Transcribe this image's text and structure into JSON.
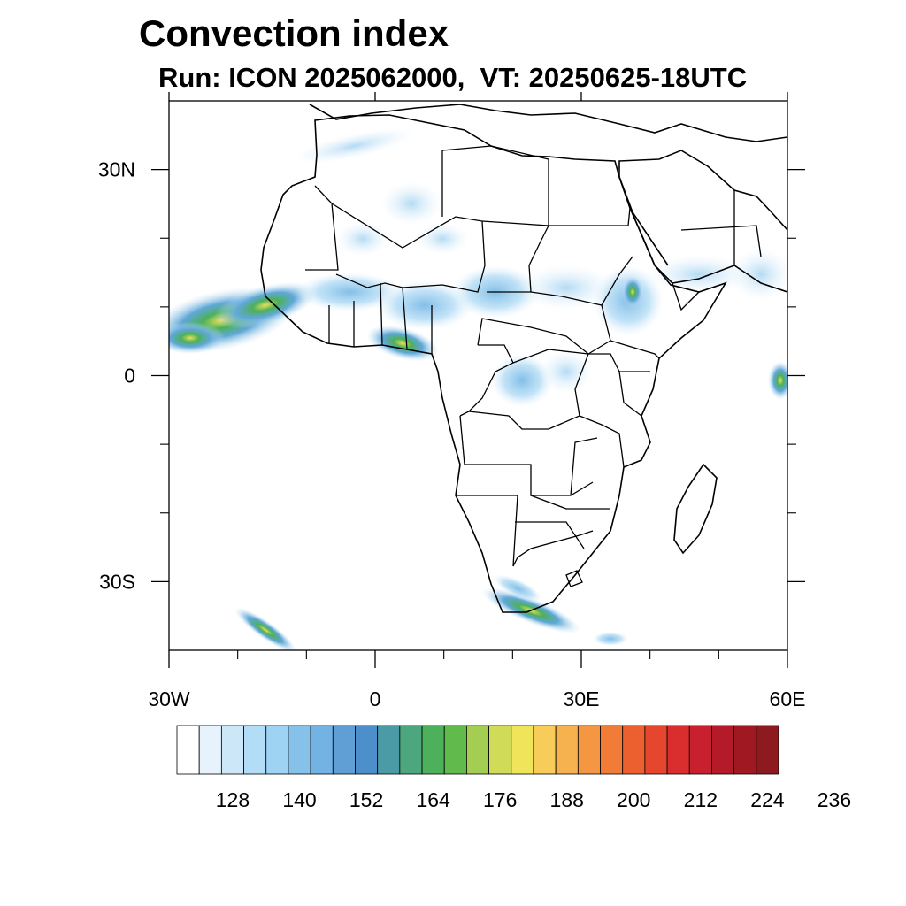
{
  "title": "Convection index",
  "subtitle": "Run: ICON 2025062000,  VT: 20250625-18UTC",
  "map": {
    "region": "Africa",
    "lon_range": [
      -30,
      60
    ],
    "lat_range": [
      -40,
      40
    ],
    "lon_ticks": [
      {
        "lon": -30,
        "label": "30W"
      },
      {
        "lon": 0,
        "label": "0"
      },
      {
        "lon": 30,
        "label": "30E"
      },
      {
        "lon": 60,
        "label": "60E"
      }
    ],
    "lat_ticks": [
      {
        "lat": 30,
        "label": "30N"
      },
      {
        "lat": 0,
        "label": "0"
      },
      {
        "lat": -30,
        "label": "30S"
      }
    ],
    "minor_lon": [
      -20,
      -10,
      10,
      20,
      40,
      50
    ],
    "minor_lat": [
      20,
      10,
      -10,
      -20
    ],
    "colors": {
      "coast": "#000000",
      "field_low": "#cfe8f7",
      "field_mid": "#6fb3e0",
      "field_high": "#4aa868",
      "field_peak": "#e8e05a"
    }
  },
  "colorbar": {
    "levels": 27,
    "colors": [
      "#ffffff",
      "#e6f3fc",
      "#cbe7f8",
      "#b3ddf6",
      "#9fd3f4",
      "#86c1ea",
      "#73b3e4",
      "#5f9fd6",
      "#4c8fcb",
      "#4a9ba6",
      "#4ca67e",
      "#4db05a",
      "#60ba4c",
      "#a4ce52",
      "#d0dc58",
      "#f0e45a",
      "#f8cc58",
      "#f6b24e",
      "#f49642",
      "#f07c38",
      "#ec6030",
      "#e4462e",
      "#da2e2e",
      "#c8202e",
      "#b41a28",
      "#a01822",
      "#8c1a1e"
    ],
    "labels": [
      {
        "index": 3,
        "text": "128"
      },
      {
        "index": 6,
        "text": "140"
      },
      {
        "index": 9,
        "text": "152"
      },
      {
        "index": 12,
        "text": "164"
      },
      {
        "index": 15,
        "text": "176"
      },
      {
        "index": 18,
        "text": "188"
      },
      {
        "index": 21,
        "text": "200"
      },
      {
        "index": 24,
        "text": "212"
      },
      {
        "index": 27,
        "text": "224"
      },
      {
        "index": 30,
        "text": "236"
      }
    ]
  }
}
